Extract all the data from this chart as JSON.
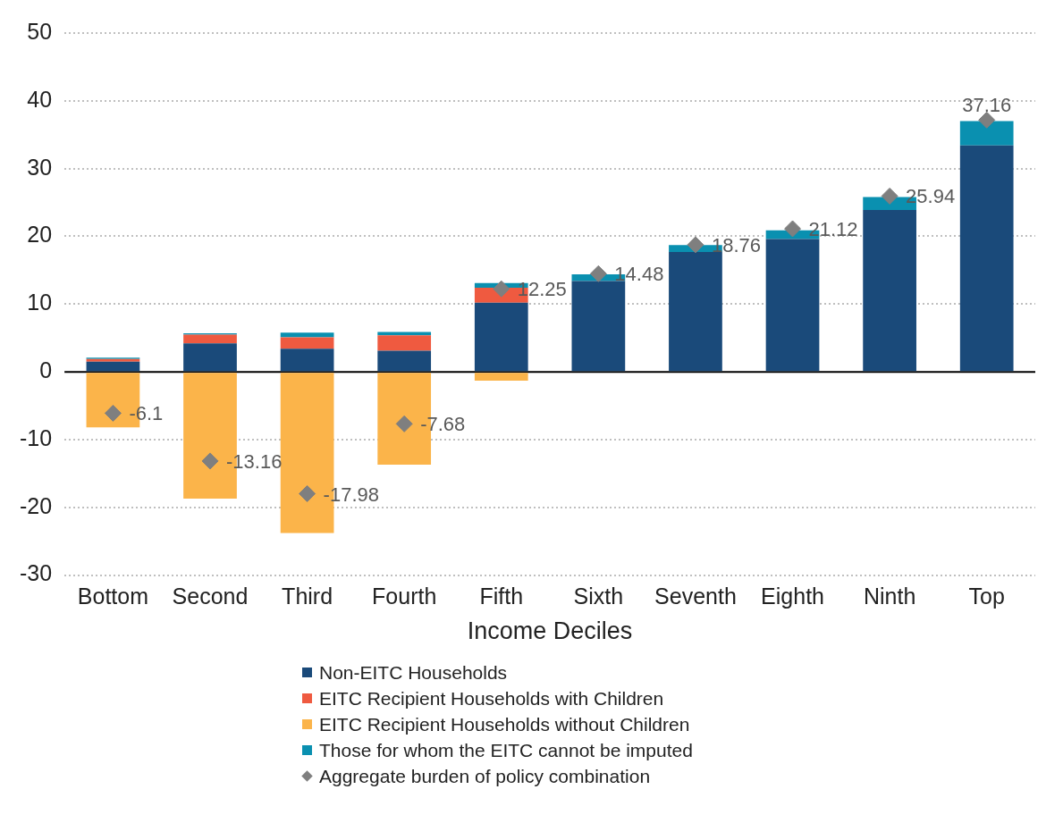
{
  "chart_data": {
    "type": "bar",
    "stacked": true,
    "xlabel": "Income Deciles",
    "categories": [
      "Bottom",
      "Second",
      "Third",
      "Fourth",
      "Fifth",
      "Sixth",
      "Seventh",
      "Eighth",
      "Ninth",
      "Top"
    ],
    "ylim": [
      -30,
      50
    ],
    "yticks": [
      -30,
      -20,
      -10,
      0,
      10,
      20,
      30,
      40,
      50
    ],
    "grid": "y",
    "legend": "bottom",
    "series": [
      {
        "name": "Non-EITC Households",
        "color": "#1a4a7a",
        "values": [
          1.5,
          4.2,
          3.4,
          3.1,
          10.2,
          13.4,
          17.7,
          19.6,
          23.9,
          33.4
        ]
      },
      {
        "name": "EITC Recipient Households with Children",
        "color": "#ef5a40",
        "values": [
          0.4,
          1.3,
          1.7,
          2.3,
          2.2,
          0,
          0,
          0,
          0,
          0
        ]
      },
      {
        "name": "EITC Recipient Households without Children",
        "color": "#fbb44a",
        "values": [
          -8.2,
          -18.7,
          -23.8,
          -13.7,
          -1.3,
          0,
          0,
          0,
          0,
          0
        ]
      },
      {
        "name": "Those for whom the EITC cannot be imputed",
        "color": "#0a90b0",
        "values": [
          0.2,
          0.2,
          0.7,
          0.5,
          0.7,
          1.0,
          1.0,
          1.3,
          1.9,
          3.6
        ]
      },
      {
        "name": "Aggregate burden of policy combination",
        "type": "scatter",
        "marker": "diamond",
        "color": "#7f7f7f",
        "values": [
          -6.1,
          -13.16,
          -17.98,
          -7.68,
          12.25,
          14.48,
          18.76,
          21.12,
          25.94,
          37.16
        ],
        "value_labels": [
          "-6.1",
          "-13.16",
          "-17.98",
          "-7.68",
          "12.25",
          "14.48",
          "18.76",
          "21.12",
          "25.94",
          "37.16"
        ]
      }
    ]
  }
}
